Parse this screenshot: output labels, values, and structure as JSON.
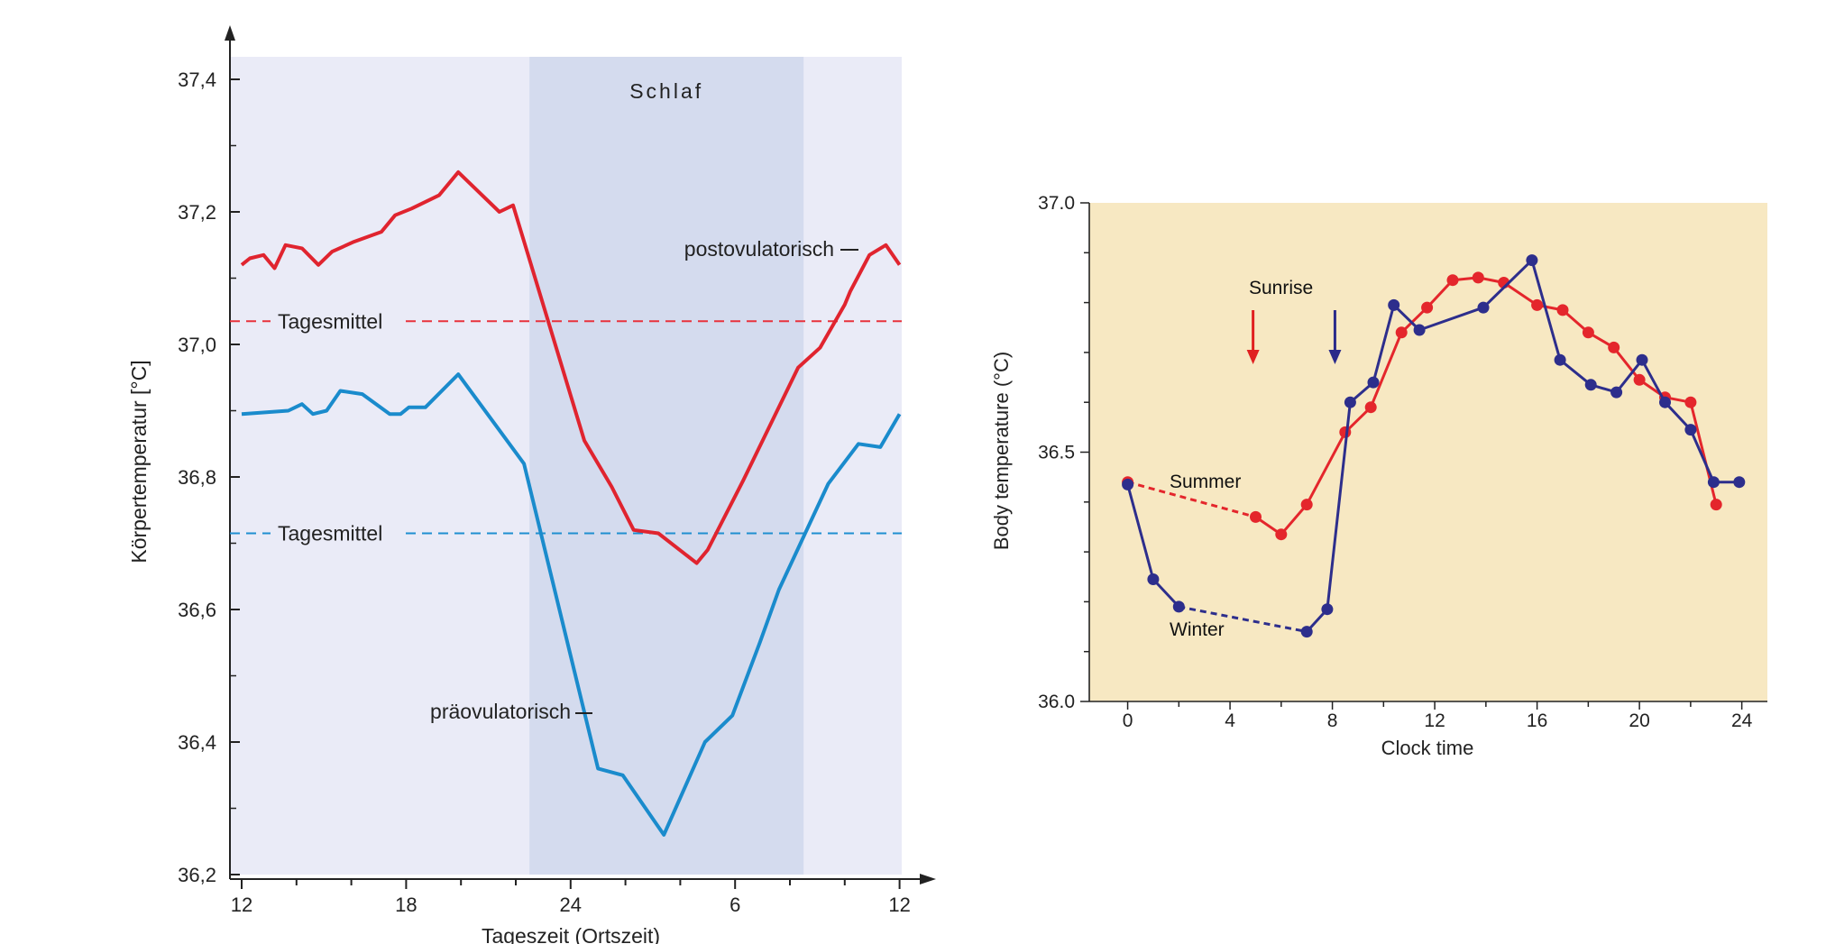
{
  "chart_data": [
    {
      "type": "line",
      "title": "",
      "xlabel": "Tageszeit (Ortszeit)",
      "ylabel": "Körpertemperatur [°C]",
      "ylim": [
        36.2,
        37.4
      ],
      "y_ticks": [
        36.2,
        36.4,
        36.6,
        36.8,
        37.0,
        37.2,
        37.4
      ],
      "y_tick_labels": [
        "36,2",
        "36,4",
        "36,6",
        "36,8",
        "37,0",
        "37,2",
        "37,4"
      ],
      "x_tick_labels": [
        "12",
        "18",
        "24",
        "6",
        "12"
      ],
      "shaded_region": {
        "label": "Schlaf",
        "x_start": 22.5,
        "x_end": 32.5
      },
      "mean_lines": [
        {
          "label": "Tagesmittel",
          "y": 37.035,
          "color": "#e8323c"
        },
        {
          "label": "Tagesmittel",
          "y": 36.715,
          "color": "#1f8fd0"
        }
      ],
      "series": [
        {
          "name": "postovulatorisch",
          "color": "#e0242f",
          "x": [
            12.0,
            12.3,
            12.8,
            13.2,
            13.6,
            14.2,
            14.8,
            15.3,
            16.1,
            17.1,
            17.6,
            18.2,
            19.2,
            19.9,
            21.4,
            21.9,
            24.5,
            25.5,
            26.3,
            27.2,
            28.6,
            29.0,
            30.3,
            32.3,
            33.1,
            34.0,
            34.2,
            34.9,
            35.5,
            36.0
          ],
          "values": [
            37.12,
            37.13,
            37.135,
            37.115,
            37.15,
            37.145,
            37.12,
            37.14,
            37.155,
            37.17,
            37.195,
            37.205,
            37.225,
            37.26,
            37.2,
            37.21,
            36.855,
            36.785,
            36.72,
            36.715,
            36.67,
            36.69,
            36.795,
            36.965,
            36.995,
            37.06,
            37.08,
            37.135,
            37.15,
            37.12
          ]
        },
        {
          "name": "präovulatorisch",
          "color": "#1a8bcc",
          "x": [
            12.0,
            13.7,
            14.2,
            14.6,
            15.1,
            15.6,
            16.4,
            17.4,
            17.8,
            18.1,
            18.7,
            19.9,
            22.3,
            25.0,
            25.9,
            27.4,
            28.9,
            29.9,
            30.9,
            31.6,
            33.4,
            34.5,
            35.3,
            36.0
          ],
          "values": [
            36.895,
            36.9,
            36.91,
            36.895,
            36.9,
            36.93,
            36.925,
            36.895,
            36.895,
            36.905,
            36.905,
            36.955,
            36.82,
            36.36,
            36.35,
            36.26,
            36.4,
            36.44,
            36.55,
            36.63,
            36.79,
            36.85,
            36.845,
            36.895
          ]
        }
      ],
      "annotations": [
        "Schlaf",
        "Tagesmittel",
        "Tagesmittel",
        "postovulatorisch",
        "präovulatorisch"
      ]
    },
    {
      "type": "line",
      "title": "",
      "xlabel": "Clock time",
      "ylabel": "Body temperature (°C)",
      "xlim": [
        -1.5,
        25
      ],
      "ylim": [
        36.0,
        37.0
      ],
      "x_ticks": [
        0,
        4,
        8,
        12,
        16,
        20,
        24
      ],
      "x_tick_labels": [
        "0",
        "4",
        "8",
        "12",
        "16",
        "20",
        "24"
      ],
      "y_ticks": [
        36.0,
        36.5,
        37.0
      ],
      "y_tick_labels": [
        "36.0",
        "36.5",
        "37.0"
      ],
      "annotations": [
        "Sunrise",
        "Summer",
        "Winter"
      ],
      "sunrise_arrows": [
        {
          "series": "Summer",
          "x": 4.9,
          "color": "#e02020"
        },
        {
          "series": "Winter",
          "x": 8.1,
          "color": "#2a2a8a"
        }
      ],
      "series": [
        {
          "name": "Summer",
          "color": "#e4262c",
          "x": [
            0,
            5,
            6,
            7,
            8.5,
            9.5,
            10.7,
            11.7,
            12.7,
            13.7,
            14.7,
            16,
            17,
            18,
            19,
            20,
            21,
            22,
            23
          ],
          "values": [
            36.44,
            36.37,
            36.335,
            36.395,
            36.54,
            36.59,
            36.74,
            36.79,
            36.845,
            36.85,
            36.84,
            36.795,
            36.785,
            36.74,
            36.71,
            36.645,
            36.61,
            36.6,
            36.395
          ],
          "dashed_segment_x": [
            0,
            5
          ]
        },
        {
          "name": "Winter",
          "color": "#2d2e8c",
          "x": [
            0,
            1,
            2,
            7,
            7.8,
            8.7,
            9.6,
            10.4,
            11.4,
            13.9,
            15.8,
            16.9,
            18.1,
            19.1,
            20.1,
            21,
            22,
            22.9,
            23.9
          ],
          "values": [
            36.435,
            36.245,
            36.19,
            36.14,
            36.185,
            36.6,
            36.64,
            36.795,
            36.745,
            36.79,
            36.885,
            36.685,
            36.635,
            36.62,
            36.685,
            36.6,
            36.545,
            36.44,
            36.44
          ],
          "dashed_segment_x": [
            2,
            7
          ]
        }
      ]
    }
  ]
}
